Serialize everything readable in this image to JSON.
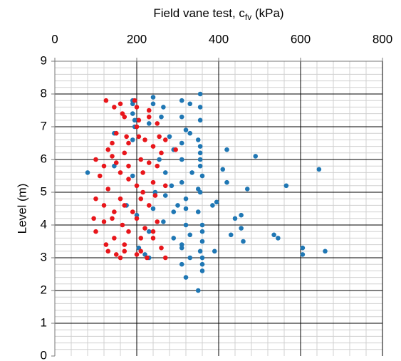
{
  "chart_data": {
    "type": "scatter",
    "xlabel": "Field vane test, c",
    "xlabel_sub": "fv",
    "xlabel_unit": " (kPa)",
    "ylabel": "Level (m)",
    "xlim": [
      0,
      800
    ],
    "xticks": [
      0,
      200,
      400,
      600,
      800
    ],
    "ylim": [
      0,
      9
    ],
    "yticks": [
      0,
      1,
      2,
      3,
      4,
      5,
      6,
      7,
      8,
      9
    ],
    "grid": true,
    "x_axis_position": "top",
    "series": [
      {
        "color": "#1f77b4",
        "x": [
          355,
          240,
          190,
          310,
          240,
          190,
          330,
          265,
          355,
          190,
          260,
          310,
          195,
          355,
          230,
          195,
          320,
          330,
          145,
          280,
          350,
          190,
          310,
          355,
          420,
          290,
          355,
          490,
          310,
          355,
          255,
          145,
          355,
          410,
          645,
          80,
          270,
          335,
          360,
          190,
          420,
          310,
          565,
          285,
          350,
          470,
          245,
          355,
          270,
          320,
          395,
          175,
          300,
          385,
          240,
          320,
          350,
          290,
          455,
          200,
          440,
          265,
          320,
          360,
          455,
          230,
          360,
          535,
          430,
          330,
          545,
          290,
          460,
          360,
          310,
          605,
          205,
          310,
          660,
          390,
          355,
          220,
          605,
          330,
          360,
          230,
          360,
          310,
          360,
          320,
          350
        ],
        "y": [
          8.0,
          7.9,
          7.8,
          7.8,
          7.7,
          7.7,
          7.7,
          7.6,
          7.6,
          7.4,
          7.3,
          7.3,
          7.2,
          7.2,
          7.1,
          7.0,
          6.9,
          6.8,
          6.8,
          6.7,
          6.6,
          6.6,
          6.5,
          6.4,
          6.3,
          6.3,
          6.2,
          6.1,
          6.0,
          6.0,
          6.0,
          5.8,
          5.8,
          5.7,
          5.7,
          5.6,
          5.6,
          5.6,
          5.5,
          5.5,
          5.3,
          5.3,
          5.2,
          5.2,
          5.1,
          5.1,
          5.0,
          5.0,
          4.9,
          4.8,
          4.7,
          4.6,
          4.6,
          4.6,
          4.5,
          4.5,
          4.4,
          4.4,
          4.3,
          4.3,
          4.2,
          4.1,
          4.0,
          4.0,
          3.9,
          3.8,
          3.8,
          3.7,
          3.7,
          3.7,
          3.6,
          3.6,
          3.5,
          3.5,
          3.4,
          3.3,
          3.3,
          3.3,
          3.2,
          3.2,
          3.2,
          3.1,
          3.1,
          3.0,
          3.0,
          3.0,
          2.8,
          2.8,
          2.6,
          2.4,
          2.0
        ]
      },
      {
        "color": "#e8161b",
        "x": [
          125,
          195,
          160,
          145,
          200,
          230,
          165,
          170,
          230,
          205,
          250,
          200,
          150,
          175,
          205,
          255,
          270,
          220,
          140,
          180,
          240,
          295,
          130,
          170,
          260,
          140,
          100,
          210,
          150,
          230,
          120,
          180,
          250,
          160,
          215,
          110,
          180,
          240,
          200,
          270,
          130,
          215,
          245,
          100,
          160,
          210,
          120,
          170,
          230,
          145,
          190,
          95,
          140,
          200,
          250,
          120,
          165,
          220,
          100,
          180,
          240,
          145,
          210,
          240,
          125,
          170,
          260,
          130,
          170,
          210,
          150,
          200,
          160,
          225,
          270
        ],
        "y": [
          7.8,
          7.8,
          7.7,
          7.6,
          7.6,
          7.5,
          7.4,
          7.3,
          7.3,
          7.2,
          7.1,
          7.0,
          6.8,
          6.7,
          6.7,
          6.7,
          6.6,
          6.6,
          6.5,
          6.5,
          6.4,
          6.3,
          6.3,
          6.2,
          6.2,
          6.1,
          6.0,
          6.0,
          5.9,
          5.9,
          5.8,
          5.8,
          5.8,
          5.6,
          5.6,
          5.5,
          5.4,
          5.3,
          5.2,
          5.2,
          5.1,
          5.0,
          4.9,
          4.8,
          4.8,
          4.8,
          4.6,
          4.6,
          4.6,
          4.4,
          4.4,
          4.2,
          4.2,
          4.2,
          4.1,
          4.1,
          4.0,
          3.9,
          3.8,
          3.8,
          3.8,
          3.6,
          3.6,
          3.6,
          3.4,
          3.4,
          3.3,
          3.2,
          3.2,
          3.2,
          3.1,
          3.1,
          3.0,
          3.0,
          3.0
        ]
      }
    ]
  }
}
